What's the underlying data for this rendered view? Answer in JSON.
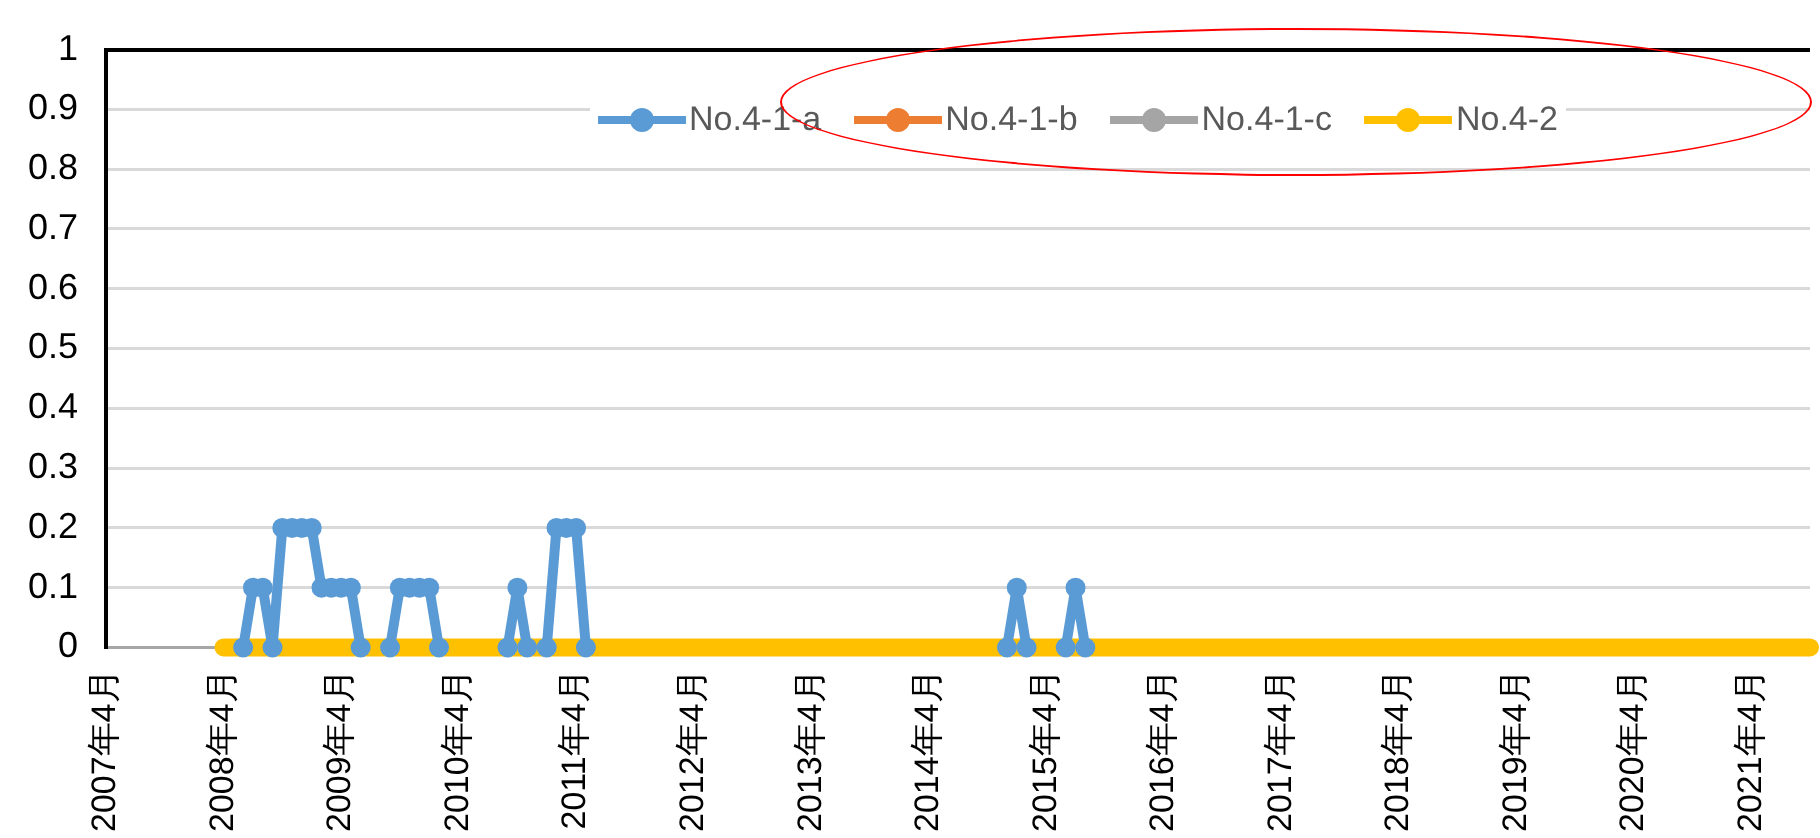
{
  "chart_data": {
    "type": "line",
    "x": [
      "2008-04",
      "2008-05",
      "2008-06",
      "2008-07",
      "2008-08",
      "2008-09",
      "2008-10",
      "2008-11",
      "2008-12",
      "2009-01",
      "2009-02",
      "2009-03",
      "2009-04",
      "2009-05",
      "2009-06",
      "2009-07",
      "2009-08",
      "2009-09",
      "2009-10",
      "2009-11",
      "2009-12",
      "2010-01",
      "2010-02",
      "2010-03",
      "2010-04",
      "2010-05",
      "2010-06",
      "2010-07",
      "2010-08",
      "2010-09",
      "2010-10",
      "2010-11",
      "2010-12",
      "2011-01",
      "2011-02",
      "2011-03",
      "2011-04",
      "2011-05",
      "2011-06",
      "2011-07",
      "2011-08",
      "2011-09",
      "2011-10",
      "2011-11",
      "2011-12",
      "2012-01",
      "2012-02",
      "2012-03",
      "2012-04",
      "2012-05",
      "2012-06",
      "2012-07",
      "2012-08",
      "2012-09",
      "2012-10",
      "2012-11",
      "2012-12",
      "2013-01",
      "2013-02",
      "2013-03",
      "2013-04",
      "2013-05",
      "2013-06",
      "2013-07",
      "2013-08",
      "2013-09",
      "2013-10",
      "2013-11",
      "2013-12",
      "2014-01",
      "2014-02",
      "2014-03",
      "2014-04",
      "2014-05",
      "2014-06",
      "2014-07",
      "2014-08",
      "2014-09",
      "2014-10",
      "2014-11",
      "2014-12",
      "2015-01",
      "2015-02",
      "2015-03",
      "2015-04",
      "2015-05",
      "2015-06",
      "2015-07",
      "2015-08",
      "2015-09",
      "2015-10",
      "2015-11",
      "2015-12",
      "2016-01",
      "2016-02",
      "2016-03",
      "2016-04",
      "2016-05",
      "2016-06",
      "2016-07",
      "2016-08",
      "2016-09",
      "2016-10",
      "2016-11",
      "2016-12",
      "2017-01",
      "2017-02",
      "2017-03",
      "2017-04",
      "2017-05",
      "2017-06",
      "2017-07",
      "2017-08",
      "2017-09",
      "2017-10",
      "2017-11",
      "2017-12",
      "2018-01",
      "2018-02",
      "2018-03",
      "2018-04",
      "2018-05",
      "2018-06",
      "2018-07",
      "2018-08",
      "2018-09",
      "2018-10",
      "2018-11",
      "2018-12",
      "2019-01",
      "2019-02",
      "2019-03",
      "2019-04",
      "2019-05",
      "2019-06",
      "2019-07",
      "2019-08",
      "2019-09",
      "2019-10",
      "2019-11",
      "2019-12",
      "2020-01",
      "2020-02",
      "2020-03",
      "2020-04",
      "2020-05",
      "2020-06",
      "2020-07",
      "2020-08",
      "2020-09",
      "2020-10",
      "2020-11",
      "2020-12",
      "2021-01",
      "2021-02",
      "2021-03",
      "2021-04",
      "2021-05",
      "2021-06",
      "2021-07",
      "2021-08",
      "2021-09",
      "2021-10"
    ],
    "series": [
      {
        "name": "No.4-1-a",
        "color": "#5b9bd5",
        "values": [
          null,
          null,
          0,
          0.1,
          0.1,
          0,
          0.2,
          0.2,
          0.2,
          0.2,
          0.1,
          0.1,
          0.1,
          0.1,
          0,
          null,
          null,
          0,
          0.1,
          0.1,
          0.1,
          0.1,
          0,
          null,
          null,
          null,
          null,
          null,
          null,
          0,
          0.1,
          0,
          null,
          0,
          0.2,
          0.2,
          0.2,
          0,
          null,
          null,
          null,
          null,
          null,
          null,
          null,
          null,
          null,
          null,
          null,
          null,
          null,
          null,
          null,
          null,
          null,
          null,
          null,
          null,
          null,
          null,
          null,
          null,
          null,
          null,
          null,
          null,
          null,
          null,
          null,
          null,
          null,
          null,
          null,
          null,
          null,
          null,
          null,
          null,
          null,
          null,
          0,
          0.1,
          0,
          null,
          null,
          null,
          0,
          0.1,
          0,
          null,
          null,
          null,
          null,
          null,
          null,
          null,
          null,
          null,
          null,
          null,
          null,
          null,
          null,
          null,
          null,
          null,
          null,
          null,
          null,
          null,
          null,
          null,
          null,
          null,
          null,
          null,
          null,
          null,
          null,
          null,
          null,
          null,
          null,
          null,
          null,
          null,
          null,
          null,
          null,
          null,
          null,
          null,
          null,
          null,
          null,
          null,
          null,
          null,
          null,
          null,
          null,
          null,
          null,
          null,
          null,
          null,
          null,
          null,
          null,
          null,
          null,
          null,
          null,
          null,
          null,
          null,
          null,
          null,
          null,
          null,
          null,
          null,
          null
        ]
      },
      {
        "name": "No.4-1-b",
        "color": "#ed7d31",
        "values": [
          null,
          null,
          null,
          null,
          null,
          null,
          null,
          null,
          null,
          null,
          null,
          null,
          null,
          null,
          null,
          null,
          null,
          null,
          null,
          null,
          null,
          null,
          null,
          null,
          null,
          null,
          null,
          null,
          null,
          null,
          null,
          null,
          null,
          null,
          null,
          null,
          null,
          null,
          null,
          null,
          null,
          null,
          null,
          null,
          null,
          null,
          null,
          null,
          null,
          null,
          null,
          null,
          null,
          null,
          null,
          null,
          null,
          null,
          null,
          null,
          null,
          null,
          null,
          null,
          null,
          null,
          null,
          null,
          null,
          null,
          null,
          null,
          null,
          null,
          null,
          null,
          null,
          null,
          null,
          null,
          null,
          null,
          null,
          null,
          null,
          null,
          null,
          null,
          null,
          null,
          null,
          null,
          null,
          null,
          null,
          null,
          null,
          null,
          null,
          null,
          null,
          null,
          null,
          null,
          null,
          null,
          null,
          null,
          null,
          null,
          null,
          null,
          null,
          null,
          null,
          null,
          null,
          null,
          null,
          null,
          null,
          null,
          null,
          null,
          null,
          null,
          null,
          null,
          null,
          null,
          null,
          null,
          null,
          null,
          null,
          null,
          null,
          null,
          null,
          null,
          null,
          null,
          null,
          null,
          null,
          null,
          null,
          null,
          null,
          null,
          null,
          null,
          null,
          null,
          null,
          null,
          null,
          null,
          null,
          null,
          null,
          null,
          null
        ]
      },
      {
        "name": "No.4-1-c",
        "color": "#a5a5a5",
        "values": [
          null,
          null,
          null,
          null,
          null,
          null,
          null,
          null,
          null,
          null,
          null,
          null,
          null,
          null,
          null,
          null,
          null,
          null,
          null,
          null,
          null,
          null,
          null,
          null,
          null,
          null,
          null,
          null,
          null,
          null,
          null,
          null,
          null,
          null,
          null,
          null,
          null,
          null,
          null,
          null,
          null,
          null,
          null,
          null,
          null,
          null,
          null,
          null,
          null,
          null,
          null,
          null,
          null,
          null,
          null,
          null,
          null,
          null,
          null,
          null,
          null,
          null,
          null,
          null,
          null,
          null,
          null,
          null,
          null,
          null,
          null,
          null,
          null,
          null,
          null,
          null,
          null,
          null,
          null,
          null,
          null,
          null,
          null,
          null,
          null,
          null,
          null,
          null,
          null,
          null,
          null,
          null,
          null,
          null,
          null,
          null,
          null,
          null,
          null,
          null,
          null,
          null,
          null,
          null,
          null,
          null,
          null,
          null,
          null,
          null,
          null,
          null,
          null,
          null,
          null,
          null,
          null,
          null,
          null,
          null,
          null,
          null,
          null,
          null,
          null,
          null,
          null,
          null,
          null,
          null,
          null,
          null,
          null,
          null,
          null,
          null,
          null,
          null,
          null,
          null,
          null,
          null,
          null,
          null,
          null,
          null,
          null,
          null,
          null,
          null,
          null,
          null,
          null,
          null,
          null,
          null,
          null,
          null,
          null,
          null,
          null,
          null,
          null
        ]
      },
      {
        "name": "No.4-2",
        "color": "#ffc000",
        "values": [
          0,
          0,
          0,
          0,
          0,
          0,
          0,
          0,
          0,
          0,
          0,
          0,
          0,
          0,
          0,
          0,
          0,
          0,
          0,
          0,
          0,
          0,
          0,
          0,
          0,
          0,
          0,
          0,
          0,
          0,
          0,
          0,
          0,
          0,
          0,
          0,
          0,
          0,
          0,
          0,
          0,
          0,
          0,
          0,
          0,
          0,
          0,
          0,
          0,
          0,
          0,
          0,
          0,
          0,
          0,
          0,
          0,
          0,
          0,
          0,
          0,
          0,
          0,
          0,
          0,
          0,
          0,
          0,
          0,
          0,
          0,
          0,
          0,
          0,
          0,
          0,
          0,
          0,
          0,
          0,
          0,
          0,
          0,
          0,
          0,
          0,
          0,
          0,
          0,
          0,
          0,
          0,
          0,
          0,
          0,
          0,
          0,
          0,
          0,
          0,
          0,
          0,
          0,
          0,
          0,
          0,
          0,
          0,
          0,
          0,
          0,
          0,
          0,
          0,
          0,
          0,
          0,
          0,
          0,
          0,
          0,
          0,
          0,
          0,
          0,
          0,
          0,
          0,
          0,
          0,
          0,
          0,
          0,
          0,
          0,
          0,
          0,
          0,
          0,
          0,
          0,
          0,
          0,
          0,
          0,
          0,
          0,
          0,
          0,
          0,
          0,
          0,
          0,
          0,
          0,
          0,
          0,
          0,
          0,
          0,
          0,
          0,
          0
        ]
      }
    ],
    "xlim": [
      "2007-04",
      "2021-10"
    ],
    "xticks": [
      {
        "value": "2007-04",
        "label": "2007年4月"
      },
      {
        "value": "2008-04",
        "label": "2008年4月"
      },
      {
        "value": "2009-04",
        "label": "2009年4月"
      },
      {
        "value": "2010-04",
        "label": "2010年4月"
      },
      {
        "value": "2011-04",
        "label": "2011年4月"
      },
      {
        "value": "2012-04",
        "label": "2012年4月"
      },
      {
        "value": "2013-04",
        "label": "2013年4月"
      },
      {
        "value": "2014-04",
        "label": "2014年4月"
      },
      {
        "value": "2015-04",
        "label": "2015年4月"
      },
      {
        "value": "2016-04",
        "label": "2016年4月"
      },
      {
        "value": "2017-04",
        "label": "2017年4月"
      },
      {
        "value": "2018-04",
        "label": "2018年4月"
      },
      {
        "value": "2019-04",
        "label": "2019年4月"
      },
      {
        "value": "2020-04",
        "label": "2020年4月"
      },
      {
        "value": "2021-04",
        "label": "2021年4月"
      }
    ],
    "ylim": [
      0,
      1
    ],
    "yticks": [
      0,
      0.1,
      0.2,
      0.3,
      0.4,
      0.5,
      0.6,
      0.7,
      0.8,
      0.9,
      1
    ],
    "grid": "y",
    "legend": "top",
    "marker": "circle",
    "line_style": "solid"
  }
}
